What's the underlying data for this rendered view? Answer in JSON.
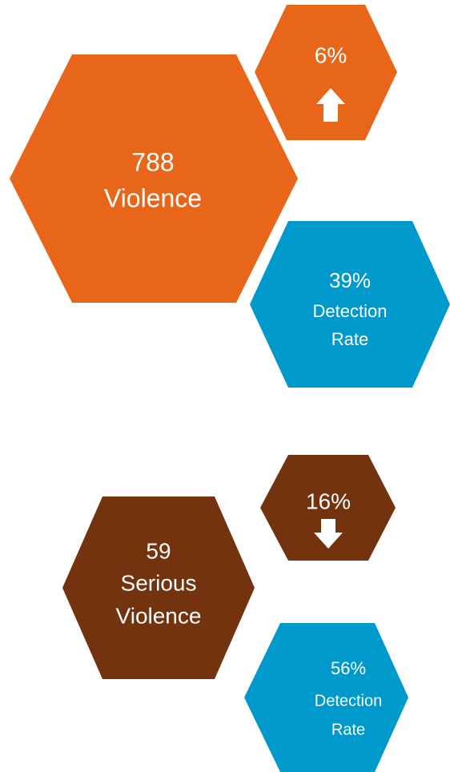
{
  "groups": [
    {
      "count": "788",
      "label": [
        "Violence"
      ],
      "change": "6%",
      "detection": "39%",
      "detection_label": [
        "Detection",
        "Rate"
      ]
    },
    {
      "count": "59",
      "label": [
        "Serious",
        "Violence"
      ],
      "change": "16%",
      "detection": "56%",
      "detection_label": [
        "Detection",
        "Rate"
      ]
    }
  ]
}
